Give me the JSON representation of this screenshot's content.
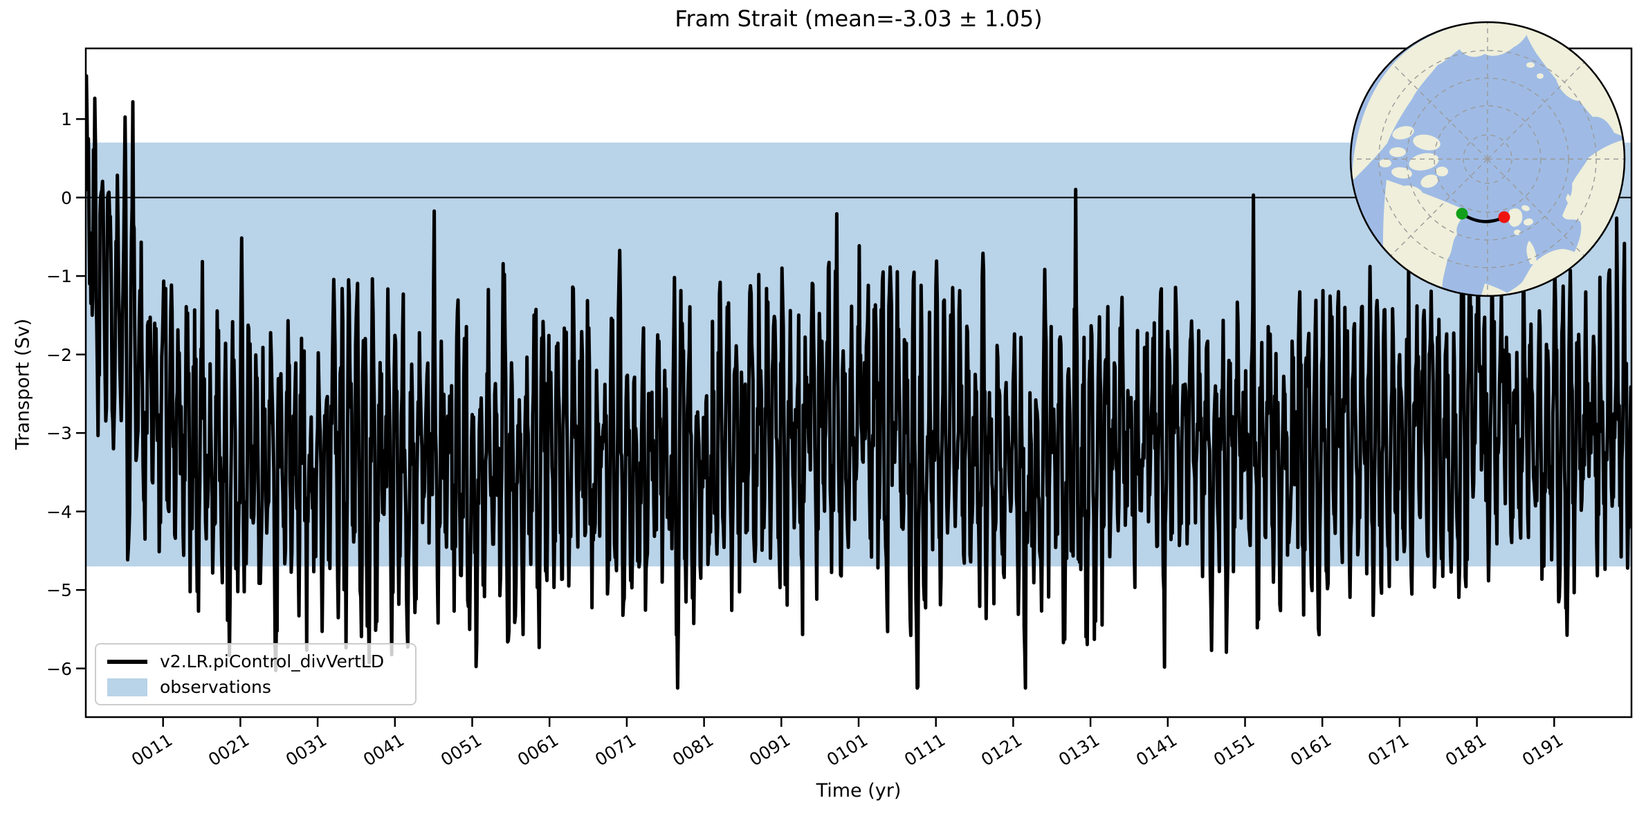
{
  "title": "Fram Strait (mean=-3.03 ± 1.05)",
  "axes": {
    "xlabel": "Time (yr)",
    "ylabel": "Transport (Sv)",
    "x_ticks": [
      {
        "label": "0011",
        "year": 11
      },
      {
        "label": "0021",
        "year": 21
      },
      {
        "label": "0031",
        "year": 31
      },
      {
        "label": "0041",
        "year": 41
      },
      {
        "label": "0051",
        "year": 51
      },
      {
        "label": "0061",
        "year": 61
      },
      {
        "label": "0071",
        "year": 71
      },
      {
        "label": "0081",
        "year": 81
      },
      {
        "label": "0091",
        "year": 91
      },
      {
        "label": "0101",
        "year": 101
      },
      {
        "label": "0111",
        "year": 111
      },
      {
        "label": "0121",
        "year": 121
      },
      {
        "label": "0131",
        "year": 131
      },
      {
        "label": "0141",
        "year": 141
      },
      {
        "label": "0151",
        "year": 151
      },
      {
        "label": "0161",
        "year": 161
      },
      {
        "label": "0171",
        "year": 171
      },
      {
        "label": "0181",
        "year": 181
      },
      {
        "label": "0191",
        "year": 191
      }
    ],
    "y_ticks": [
      {
        "label": "1",
        "value": 1
      },
      {
        "label": "0",
        "value": 0
      },
      {
        "label": "−1",
        "value": -1
      },
      {
        "label": "−2",
        "value": -2
      },
      {
        "label": "−3",
        "value": -3
      },
      {
        "label": "−4",
        "value": -4
      },
      {
        "label": "−5",
        "value": -5
      },
      {
        "label": "−6",
        "value": -6
      }
    ]
  },
  "legend": {
    "entries": [
      {
        "label": "v2.LR.piControl_divVertLD",
        "type": "line",
        "color": "#000000"
      },
      {
        "label": "observations",
        "type": "patch",
        "color": "#b9d3e8"
      }
    ],
    "border_color": "#cccccc"
  },
  "chart_data": {
    "type": "line",
    "title": "Fram Strait (mean=-3.03 ± 1.05)",
    "xlabel": "Time (yr)",
    "ylabel": "Transport (Sv)",
    "xlim": [
      1,
      201
    ],
    "ylim": [
      -6.62,
      1.9
    ],
    "grid": false,
    "legend_position": "lower left",
    "series": [
      {
        "name": "v2.LR.piControl_divVertLD",
        "color": "#000000",
        "line_width": 5,
        "sampling": "monthly",
        "year_range": [
          1,
          201
        ],
        "stats": {
          "mean": -3.03,
          "std": 1.05,
          "max": 1.55,
          "min": -6.25
        },
        "trend_anchors": [
          [
            1,
            -0.2
          ],
          [
            2,
            -0.7
          ],
          [
            3,
            -1.1
          ],
          [
            5,
            -1.6
          ],
          [
            7,
            -1.9
          ],
          [
            9,
            -2.2
          ],
          [
            12,
            -2.7
          ],
          [
            15,
            -3.05
          ],
          [
            20,
            -3.3
          ],
          [
            28,
            -3.4
          ],
          [
            38,
            -3.45
          ],
          [
            50,
            -3.45
          ],
          [
            60,
            -3.4
          ],
          [
            70,
            -3.3
          ],
          [
            80,
            -3.15
          ],
          [
            88,
            -3.0
          ],
          [
            95,
            -2.85
          ],
          [
            100,
            -2.8
          ],
          [
            106,
            -3.0
          ],
          [
            114,
            -3.2
          ],
          [
            124,
            -3.3
          ],
          [
            134,
            -3.3
          ],
          [
            144,
            -3.2
          ],
          [
            154,
            -3.2
          ],
          [
            164,
            -3.1
          ],
          [
            174,
            -3.05
          ],
          [
            184,
            -3.05
          ],
          [
            192,
            -2.95
          ],
          [
            201,
            -2.8
          ]
        ],
        "initial_values": [
          0.85,
          1.55,
          0.95,
          0.1,
          0.75,
          -0.35,
          -1.1,
          -0.45,
          -1.35,
          -0.6,
          -1.5,
          -0.95
        ],
        "noise": {
          "seed": 7,
          "phi": 0.5,
          "sigma": 0.45,
          "white": 0.3,
          "seasonal_amp_base": 0.85,
          "seasonal_amp_var": 0.95,
          "clip": [
            -6.25,
            1.58
          ]
        }
      }
    ],
    "bands": [
      {
        "name": "observations",
        "y_top": 0.7,
        "y_bottom": -4.7,
        "color": "#b9d3e8",
        "represents": "observed transport -2.0 ± 2.7 Sv"
      }
    ],
    "reference_lines": [
      {
        "y": 0,
        "color": "#000000",
        "width": 2
      }
    ]
  },
  "inset_map": {
    "description": "north-polar-view circular map of the Arctic",
    "ocean_color": "#9fbbe5",
    "land_color": "#efefdb",
    "graticule_color": "#9a9a9a",
    "frame_color": "#000000",
    "section_line_color": "#000000",
    "start_marker_color": "#12a01b",
    "end_marker_color": "#ef1310"
  }
}
